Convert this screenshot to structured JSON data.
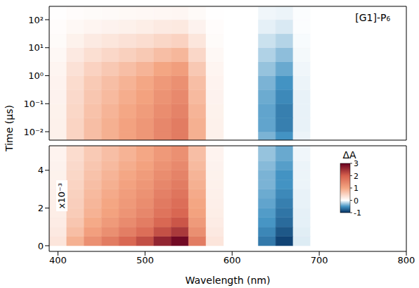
{
  "chart_data": {
    "type": "heatmap",
    "x_label": "Wavelength (nm)",
    "y_label": "Time (µs)",
    "annotation": "[G1]-P₆",
    "xlim": [
      390,
      800
    ],
    "xticks": [
      400,
      500,
      600,
      700,
      800
    ],
    "x_bins": [
      390,
      410,
      430,
      450,
      470,
      490,
      510,
      530,
      550,
      570,
      590,
      610,
      630,
      650,
      670,
      690,
      710,
      730,
      750,
      770,
      790,
      800
    ],
    "colorbar": {
      "label": "ΔA",
      "multiplier_label": "x10⁻³",
      "range": [
        -1,
        3
      ],
      "ticks": [
        -1,
        0,
        1,
        2,
        3
      ]
    },
    "panels": [
      {
        "log": "y",
        "ylim": [
          0.005,
          300
        ],
        "yticks": [
          {
            "value": 0.01,
            "label": "10⁻²"
          },
          {
            "value": 0.1,
            "label": "10⁻¹"
          },
          {
            "value": 1,
            "label": "10⁰"
          },
          {
            "value": 10,
            "label": "10¹"
          },
          {
            "value": 100,
            "label": "10²"
          }
        ],
        "y_bins": [
          0.005,
          0.01,
          0.0316,
          0.1,
          0.316,
          1,
          3.16,
          10,
          31.6,
          100,
          300
        ],
        "cells": [
          [
            0.16,
            0.48,
            0.72,
            0.88,
            1.04,
            1.2,
            1.44,
            1.6,
            0.88,
            0.16,
            null,
            0,
            -0.35,
            -0.5,
            -0.05,
            0,
            0,
            0,
            0,
            0,
            0
          ],
          [
            0.16,
            0.48,
            0.72,
            0.88,
            1.04,
            1.2,
            1.44,
            1.6,
            0.88,
            0.16,
            null,
            0,
            -0.42,
            -0.6,
            -0.06,
            0,
            0,
            0,
            0,
            0,
            0
          ],
          [
            0.15,
            0.45,
            0.68,
            0.83,
            0.98,
            1.13,
            1.35,
            1.5,
            0.83,
            0.15,
            null,
            0,
            -0.42,
            -0.6,
            -0.06,
            0,
            0,
            0,
            0,
            0,
            0
          ],
          [
            0.14,
            0.42,
            0.63,
            0.77,
            0.91,
            1.05,
            1.26,
            1.4,
            0.77,
            0.14,
            null,
            0,
            -0.39,
            -0.55,
            -0.06,
            0,
            0,
            0,
            0,
            0,
            0
          ],
          [
            0.13,
            0.39,
            0.59,
            0.72,
            0.85,
            0.98,
            1.17,
            1.3,
            0.72,
            0.13,
            null,
            0,
            -0.35,
            -0.5,
            -0.05,
            0,
            0,
            0,
            0,
            0,
            0
          ],
          [
            0.11,
            0.33,
            0.5,
            0.61,
            0.72,
            0.83,
            0.99,
            1.1,
            0.61,
            0.11,
            null,
            0,
            -0.28,
            -0.4,
            -0.04,
            0,
            0,
            0,
            0,
            0,
            0
          ],
          [
            0.08,
            0.24,
            0.36,
            0.44,
            0.52,
            0.6,
            0.72,
            0.8,
            0.44,
            0.08,
            null,
            0,
            -0.21,
            -0.3,
            -0.03,
            0,
            0,
            0,
            0,
            0,
            0
          ],
          [
            0.05,
            0.15,
            0.23,
            0.28,
            0.33,
            0.38,
            0.45,
            0.5,
            0.28,
            0.05,
            null,
            0,
            -0.14,
            -0.2,
            -0.02,
            0,
            0,
            0,
            0,
            0,
            0
          ],
          [
            0.03,
            0.08,
            0.11,
            0.14,
            0.16,
            0.19,
            0.23,
            0.25,
            0.14,
            0.03,
            null,
            0,
            -0.07,
            -0.1,
            -0.01,
            0,
            0,
            0,
            0,
            0,
            0
          ],
          [
            0.01,
            0.03,
            0.05,
            0.06,
            0.07,
            0.08,
            0.09,
            0.1,
            0.06,
            0.01,
            null,
            0,
            -0.04,
            -0.05,
            -0.01,
            0,
            0,
            0,
            0,
            0,
            0
          ]
        ]
      },
      {
        "ylim": [
          -0.3,
          5.3
        ],
        "yticks": [
          0,
          2,
          4
        ],
        "y_bins": [
          0,
          0.5,
          1,
          1.5,
          2,
          2.5,
          3,
          3.5,
          4,
          4.5,
          5.3
        ],
        "cells": [
          [
            0.29,
            0.87,
            1.31,
            1.6,
            1.89,
            2.18,
            2.61,
            2.9,
            1.6,
            0.29,
            null,
            0,
            -0.63,
            -0.9,
            -0.09,
            0,
            0,
            0,
            0,
            0,
            0
          ],
          [
            0.24,
            0.72,
            1.08,
            1.32,
            1.56,
            1.8,
            2.16,
            2.4,
            1.32,
            0.24,
            null,
            0,
            -0.56,
            -0.8,
            -0.08,
            0,
            0,
            0,
            0,
            0,
            0
          ],
          [
            0.21,
            0.63,
            0.95,
            1.16,
            1.37,
            1.58,
            1.89,
            2.1,
            1.16,
            0.21,
            null,
            0,
            -0.49,
            -0.7,
            -0.07,
            0,
            0,
            0,
            0,
            0,
            0
          ],
          [
            0.19,
            0.57,
            0.86,
            1.05,
            1.24,
            1.43,
            1.71,
            1.9,
            1.05,
            0.19,
            null,
            0,
            -0.46,
            -0.65,
            -0.07,
            0,
            0,
            0,
            0,
            0,
            0
          ],
          [
            0.18,
            0.54,
            0.81,
            0.99,
            1.17,
            1.35,
            1.62,
            1.8,
            0.99,
            0.18,
            null,
            0,
            -0.42,
            -0.6,
            -0.06,
            0,
            0,
            0,
            0,
            0,
            0
          ],
          [
            0.17,
            0.51,
            0.77,
            0.94,
            1.11,
            1.28,
            1.53,
            1.7,
            0.94,
            0.17,
            null,
            0,
            -0.39,
            -0.55,
            -0.06,
            0,
            0,
            0,
            0,
            0,
            0
          ],
          [
            0.16,
            0.48,
            0.72,
            0.88,
            1.04,
            1.2,
            1.44,
            1.6,
            0.88,
            0.16,
            null,
            0,
            -0.35,
            -0.5,
            -0.05,
            0,
            0,
            0,
            0,
            0,
            0
          ],
          [
            0.15,
            0.45,
            0.68,
            0.83,
            0.98,
            1.13,
            1.35,
            1.5,
            0.83,
            0.15,
            null,
            0,
            -0.35,
            -0.5,
            -0.05,
            0,
            0,
            0,
            0,
            0,
            0
          ],
          [
            0.14,
            0.42,
            0.63,
            0.77,
            0.91,
            1.05,
            1.26,
            1.4,
            0.77,
            0.14,
            null,
            0,
            -0.32,
            -0.45,
            -0.05,
            0,
            0,
            0,
            0,
            0,
            0
          ],
          [
            0.13,
            0.39,
            0.59,
            0.72,
            0.85,
            0.98,
            1.17,
            1.3,
            0.72,
            0.13,
            null,
            0,
            -0.28,
            -0.4,
            -0.04,
            0,
            0,
            0,
            0,
            0,
            0
          ]
        ]
      }
    ]
  }
}
